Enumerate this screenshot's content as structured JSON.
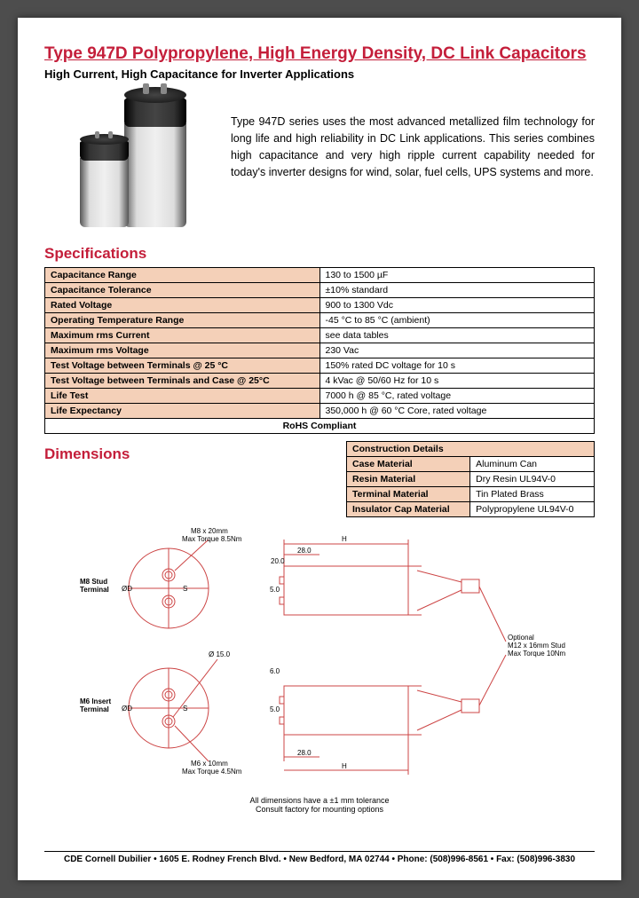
{
  "header": {
    "title": "Type 947D Polypropylene, High Energy Density, DC Link Capacitors",
    "subtitle": "High Current, High Capacitance for Inverter Applications"
  },
  "description": "Type 947D series uses the most advanced metallized film technology for long life and high reliability in DC Link applications. This series combines high capacitance and very high ripple current capability needed for today's inverter designs for wind, solar, fuel cells, UPS systems and more.",
  "sections": {
    "specifications": "Specifications",
    "dimensions": "Dimensions"
  },
  "specs": [
    {
      "label": "Capacitance Range",
      "value": "130 to 1500 µF"
    },
    {
      "label": "Capacitance Tolerance",
      "value": "±10% standard"
    },
    {
      "label": "Rated Voltage",
      "value": "900 to 1300 Vdc"
    },
    {
      "label": "Operating Temperature Range",
      "value": "-45 °C to 85 °C (ambient)"
    },
    {
      "label": "Maximum rms Current",
      "value": "see data tables"
    },
    {
      "label": "Maximum rms Voltage",
      "value": "230 Vac"
    },
    {
      "label": "Test Voltage between Terminals @ 25 °C",
      "value": "150% rated DC voltage for 10 s"
    },
    {
      "label": "Test Voltage between Terminals and Case @ 25°C",
      "value": "4 kVac @ 50/60 Hz for 10 s"
    },
    {
      "label": "Life Test",
      "value": "7000 h @ 85 °C, rated voltage"
    },
    {
      "label": "Life Expectancy",
      "value": "350,000 h @ 60 °C Core, rated voltage"
    }
  ],
  "specFooter": "RoHS Compliant",
  "construction": {
    "header": "Construction Details",
    "rows": [
      {
        "label": "Case Material",
        "value": "Aluminum Can"
      },
      {
        "label": "Resin Material",
        "value": "Dry Resin UL94V-0"
      },
      {
        "label": "Terminal Material",
        "value": "Tin Plated Brass"
      },
      {
        "label": "Insulator Cap Material",
        "value": "Polypropylene UL94V-0"
      }
    ]
  },
  "drawing": {
    "m8StudLabel": "M8 Stud Terminal",
    "m6InsertLabel": "M6 Insert Terminal",
    "m8Spec": "M8 x 20mm\nMax Torque 8.5Nm",
    "m6Spec": "M6 x 10mm\nMax Torque 4.5Nm",
    "optionalStud": "Optional\nM12 x 16mm Stud\nMax Torque 10Nm",
    "dim_20": "20.0",
    "dim_28a": "28.0",
    "dim_28b": "28.0",
    "dim_60": "6.0",
    "dim_50a": "5.0",
    "dim_50b": "5.0",
    "dim_phi15": "Ø 15.0",
    "dim_D": "ØD",
    "dim_H": "H",
    "dim_S": "S",
    "note": "All dimensions have a ±1 mm tolerance\nConsult factory for mounting options"
  },
  "footer": "CDE Cornell Dubilier • 1605 E. Rodney French Blvd. • New Bedford, MA 02744 • Phone: (508)996-8561 • Fax: (508)996-3830",
  "colors": {
    "accent": "#c41e3a",
    "tableHeader": "#f4d0b8",
    "pageBg": "#4d4d4d",
    "drawStroke": "#cc4444"
  }
}
